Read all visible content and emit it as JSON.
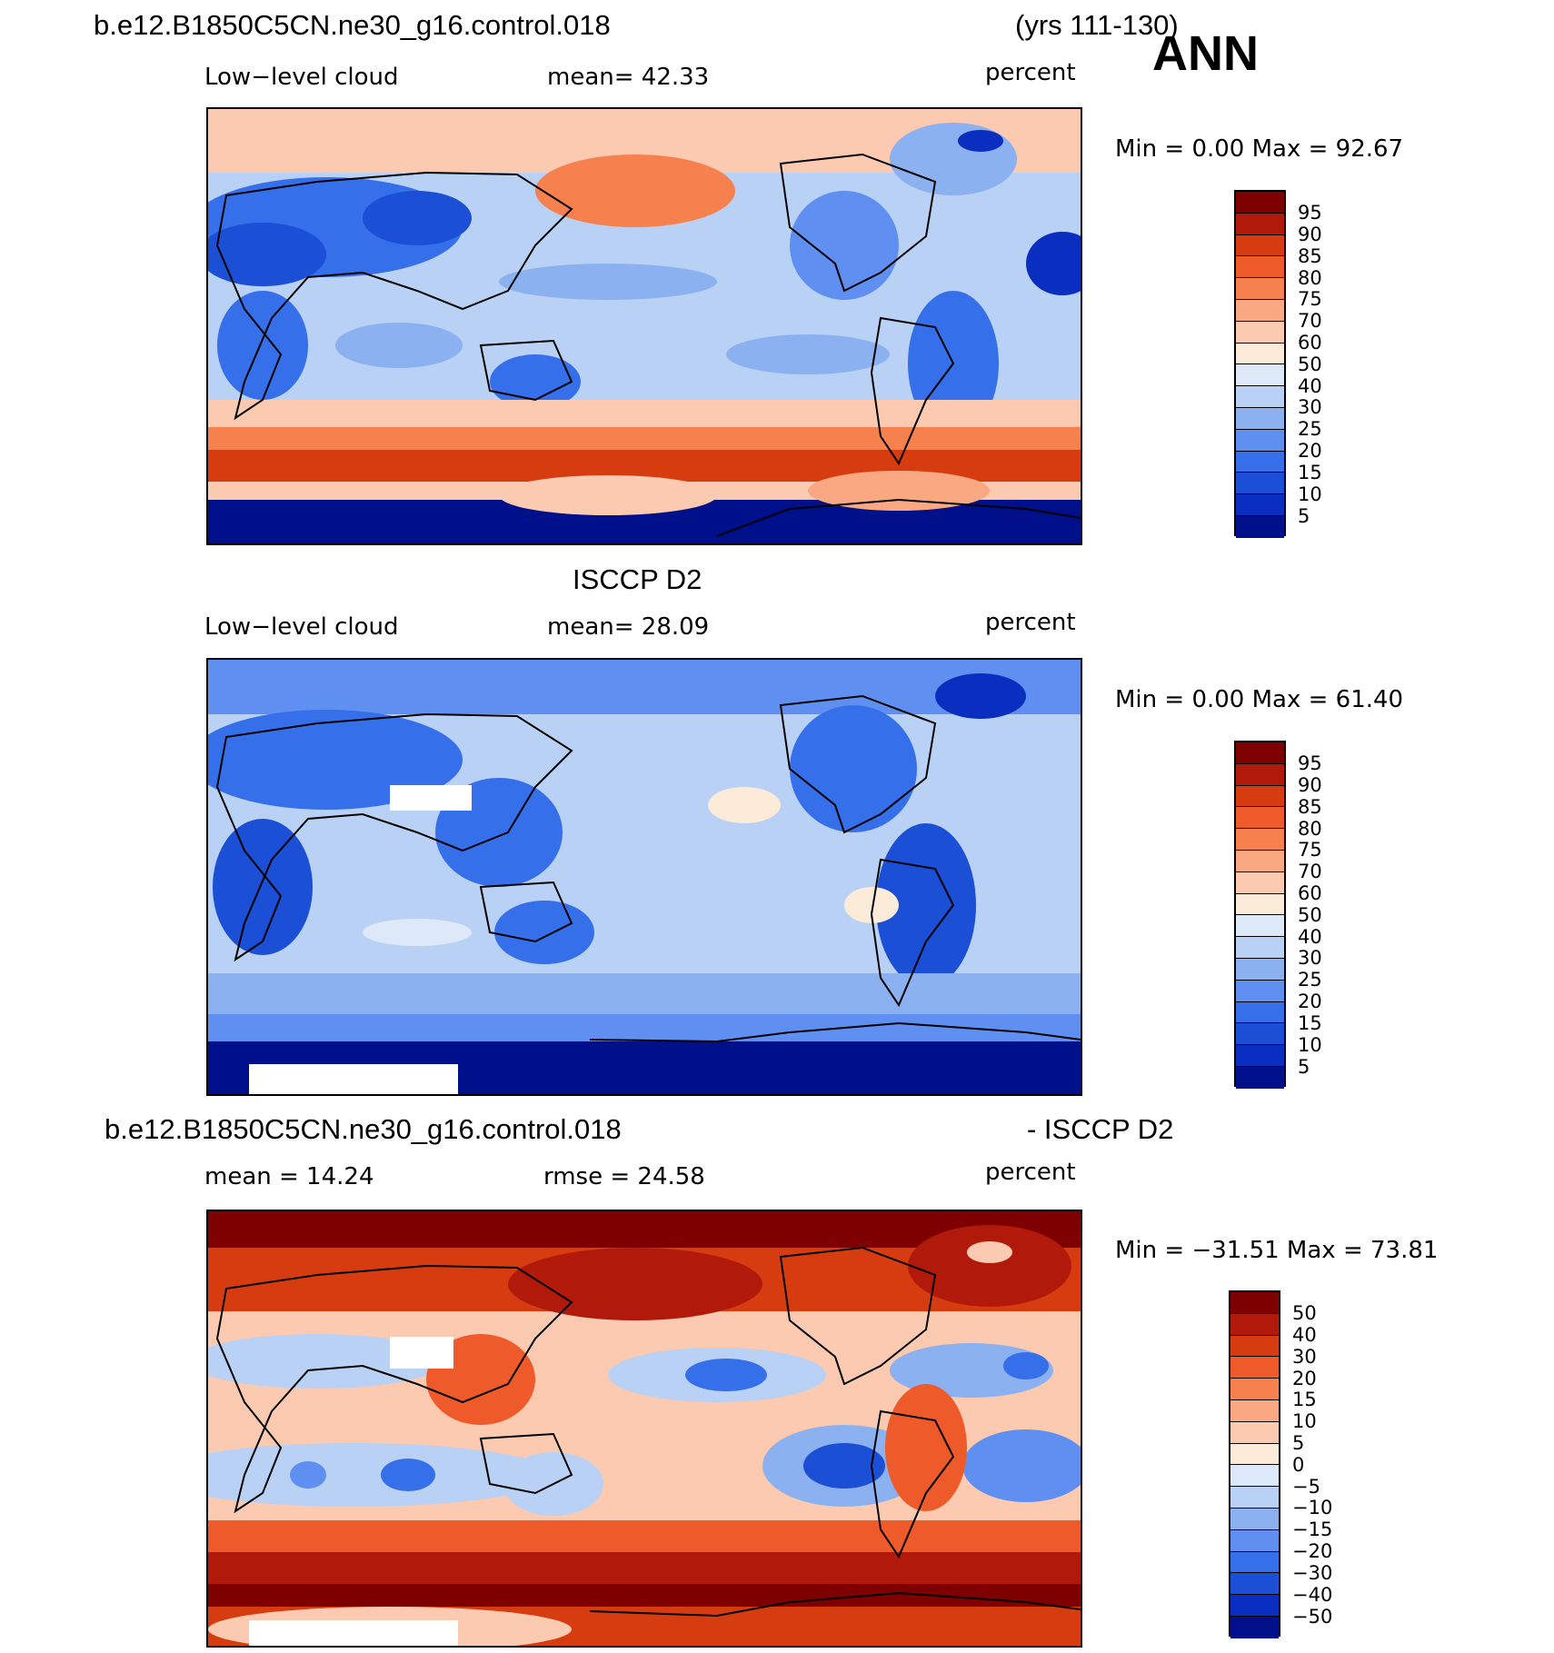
{
  "header": {
    "case_name": "b.e12.B1850C5CN.ne30_g16.control.018",
    "years": "(yrs 111-130)",
    "season": "ANN"
  },
  "panels": [
    {
      "title": "",
      "variable": "Low−level cloud",
      "stat_text": "mean=   42.33",
      "units": "percent",
      "minmax": "Min =     0.00  Max =    92.67",
      "colorbar_labels": [
        "95",
        "90",
        "85",
        "80",
        "75",
        "70",
        "60",
        "50",
        "40",
        "30",
        "25",
        "20",
        "15",
        "10",
        "5"
      ]
    },
    {
      "title": "ISCCP D2",
      "variable": "Low−level cloud",
      "stat_text": "mean=   28.09",
      "units": "percent",
      "minmax": "Min =     0.00  Max =    61.40",
      "colorbar_labels": [
        "95",
        "90",
        "85",
        "80",
        "75",
        "70",
        "60",
        "50",
        "40",
        "30",
        "25",
        "20",
        "15",
        "10",
        "5"
      ]
    },
    {
      "title_left": "b.e12.B1850C5CN.ne30_g16.control.018",
      "title_right": "- ISCCP D2",
      "stat_left": "mean =   14.24",
      "stat_right": "rmse =   24.58",
      "units": "percent",
      "minmax": "Min = −31.51  Max =   73.81",
      "colorbar_labels": [
        "50",
        "40",
        "30",
        "20",
        "15",
        "10",
        "5",
        "0",
        "−5",
        "−10",
        "−15",
        "−20",
        "−30",
        "−40",
        "−50"
      ]
    }
  ],
  "colors": {
    "abs_scale": [
      "#7f0000",
      "#b11a0a",
      "#d63c0f",
      "#ee5a2a",
      "#f7804f",
      "#f9a882",
      "#fbcab0",
      "#fdebd9",
      "#dde9f8",
      "#b9d1f5",
      "#8bb1f1",
      "#5f8ff0",
      "#356fe9",
      "#1a4fd6",
      "#0a2fc0",
      "#000f8a"
    ],
    "diff_scale": [
      "#7f0000",
      "#b11a0a",
      "#d63c0f",
      "#ee5a2a",
      "#f7804f",
      "#f9a882",
      "#fbcab0",
      "#fdebd9",
      "#dde9f8",
      "#b9d1f5",
      "#8bb1f1",
      "#5f8ff0",
      "#356fe9",
      "#1a4fd6",
      "#0a2fc0",
      "#000f8a"
    ],
    "missing": "#ffffff"
  }
}
